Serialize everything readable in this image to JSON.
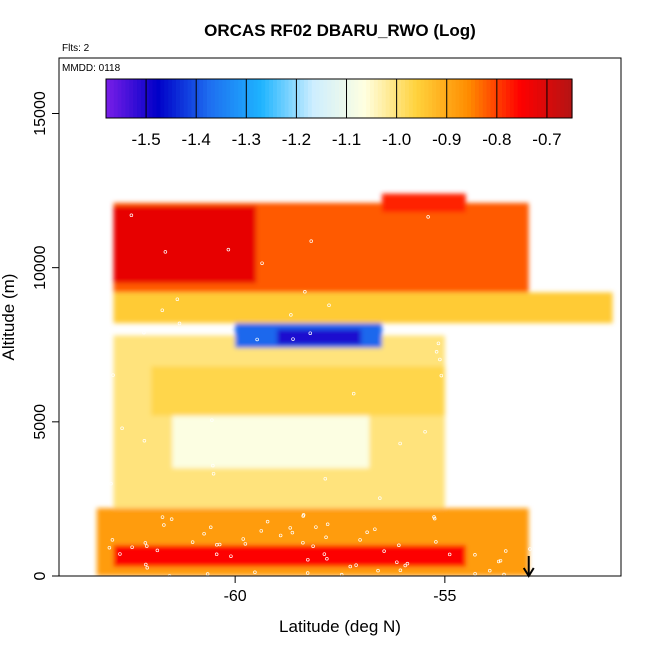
{
  "chart_data": {
    "type": "heatmap",
    "title": "ORCAS RF02 DBARU_RWO (Log)",
    "annotations": {
      "flights": "Flts: 2",
      "date": "MMDD: 0118"
    },
    "xlabel": "Latitude (deg N)",
    "ylabel": "Altitude (m)",
    "xlim": [
      -64.2,
      -50.8
    ],
    "ylim": [
      0,
      16800
    ],
    "xticks": [
      -60,
      -55
    ],
    "xtick_labels": [
      "-60",
      "-55"
    ],
    "yticks": [
      0,
      5000,
      10000,
      15000
    ],
    "ytick_labels": [
      "0",
      "5000",
      "10000",
      "15000"
    ],
    "colorbar": {
      "min": -1.58,
      "max": -0.65,
      "ticks": [
        -1.5,
        -1.4,
        -1.3,
        -1.2,
        -1.1,
        -1.0,
        -0.9,
        -0.8,
        -0.7
      ],
      "tick_labels": [
        "-1.5",
        "-1.4",
        "-1.3",
        "-1.2",
        "-1.1",
        "-1.0",
        "-0.9",
        "-0.8",
        "-0.7"
      ],
      "colors": [
        "#7a1ee8",
        "#0000c8",
        "#1e6ef0",
        "#1eb4ff",
        "#cdeeff",
        "#ffffe0",
        "#ffd23c",
        "#ff8c00",
        "#ff0000",
        "#b41414"
      ],
      "position": "top"
    },
    "arrow_marker": {
      "latitude": -53.0,
      "direction": "down"
    },
    "field_description": "Log10 DBARU_RWO along flight track, gridded by latitude and altitude",
    "field": [
      {
        "lat_range": [
          -63.3,
          -53.0
        ],
        "alt_range": [
          0,
          2200
        ],
        "value": -0.88
      },
      {
        "lat_range": [
          -62.9,
          -54.5
        ],
        "alt_range": [
          300,
          1000
        ],
        "value": -0.75
      },
      {
        "lat_range": [
          -62.9,
          -55.0
        ],
        "alt_range": [
          2200,
          7800
        ],
        "value": -1.0
      },
      {
        "lat_range": [
          -61.5,
          -56.8
        ],
        "alt_range": [
          3500,
          5200
        ],
        "value": -1.07
      },
      {
        "lat_range": [
          -62.0,
          -55.0
        ],
        "alt_range": [
          5200,
          6800
        ],
        "value": -0.97
      },
      {
        "lat_range": [
          -60.0,
          -56.5
        ],
        "alt_range": [
          7400,
          8200
        ],
        "value": -1.38
      },
      {
        "lat_range": [
          -59.0,
          -57.0
        ],
        "alt_range": [
          7500,
          8000
        ],
        "value": -1.5
      },
      {
        "lat_range": [
          -62.9,
          -51.0
        ],
        "alt_range": [
          8200,
          9200
        ],
        "value": -0.95
      },
      {
        "lat_range": [
          -62.9,
          -53.0
        ],
        "alt_range": [
          9200,
          12100
        ],
        "value": -0.82
      },
      {
        "lat_range": [
          -62.9,
          -59.5
        ],
        "alt_range": [
          9500,
          12000
        ],
        "value": -0.72
      },
      {
        "lat_range": [
          -56.5,
          -54.5
        ],
        "alt_range": [
          11800,
          12400
        ],
        "value": -0.78
      }
    ]
  }
}
